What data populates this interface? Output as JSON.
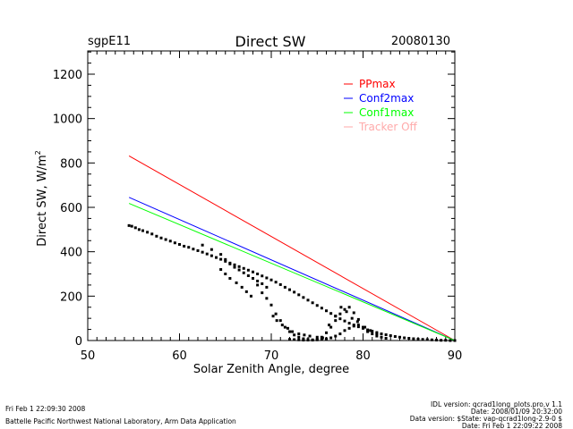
{
  "header": {
    "station": "sgpE11",
    "title": "Direct SW",
    "date": "20080130"
  },
  "footer": {
    "left_timestamp": "Fri Feb  1 22:09:30 2008",
    "left_org": "Battelle Pacific Northwest National Laboratory, Arm Data Application",
    "right_lines": [
      "IDL version: qcrad1long_plots.pro,v 1.1",
      "Date: 2008/01/09 20:32:00",
      "Data version: $State: vap-qcrad1long-2.9-0 $",
      "Date: Fri Feb  1 22:09:22 2008"
    ]
  },
  "chart_data": {
    "type": "scatter",
    "title": "Direct SW",
    "xlabel": "Solar Zenith Angle, degree",
    "ylabel": "Direct SW, W/m",
    "ylabel_superscript": "2",
    "xlim": [
      50,
      90
    ],
    "ylim": [
      0,
      1300
    ],
    "xticks": [
      50,
      60,
      70,
      80,
      90
    ],
    "xtick_labels": [
      "50",
      "60",
      "70",
      "80",
      "90"
    ],
    "yticks": [
      0,
      200,
      400,
      600,
      800,
      1000,
      1200
    ],
    "ytick_labels": [
      "0",
      "200",
      "400",
      "600",
      "800",
      "1000",
      "1200"
    ],
    "grid": false,
    "legend_position": "top-right",
    "legend": [
      {
        "name": "PPmax",
        "color": "#ff0000"
      },
      {
        "name": "Conf2max",
        "color": "#0000ff"
      },
      {
        "name": "Conf1max",
        "color": "#00ff00"
      },
      {
        "name": "Tracker Off",
        "color": "#ffaaaa"
      }
    ],
    "series": [
      {
        "name": "PPmax",
        "kind": "line",
        "color": "#ff0000",
        "x": [
          54.5,
          90
        ],
        "y": [
          832,
          0
        ]
      },
      {
        "name": "Conf2max",
        "kind": "line",
        "color": "#0000ff",
        "x": [
          54.5,
          90
        ],
        "y": [
          645,
          0
        ]
      },
      {
        "name": "Conf1max",
        "kind": "line",
        "color": "#00ff00",
        "x": [
          54.5,
          90
        ],
        "y": [
          618,
          0
        ]
      },
      {
        "name": "Direct SW",
        "kind": "scatter",
        "color": "#000000",
        "x": [
          54.5,
          54.8,
          55.2,
          55.6,
          56.0,
          56.5,
          57.0,
          57.5,
          58.0,
          58.5,
          59.0,
          59.5,
          60.0,
          60.5,
          61.0,
          61.5,
          62.0,
          62.5,
          63.0,
          63.5,
          64.0,
          64.5,
          65.0,
          65.5,
          66.0,
          66.5,
          67.0,
          67.5,
          68.0,
          68.5,
          69.0,
          69.5,
          70.0,
          70.5,
          71.0,
          71.5,
          72.0,
          72.5,
          73.0,
          73.5,
          74.0,
          74.5,
          75.0,
          75.5,
          76.0,
          76.5,
          77.0,
          77.5,
          78.0,
          78.5,
          79.0,
          79.5,
          80.0,
          80.5,
          81.0,
          81.5,
          82.0,
          82.5,
          83.0,
          83.5,
          84.0,
          84.5,
          85.0,
          85.5,
          86.0,
          86.5,
          87.0,
          87.5,
          88.0,
          88.5,
          89.0,
          89.5,
          90.0,
          62.5,
          63.5,
          64.5,
          65.0,
          65.5,
          66.0,
          66.5,
          67.0,
          67.5,
          68.0,
          68.5,
          69.0,
          69.5,
          64.5,
          65.0,
          65.5,
          66.2,
          66.8,
          67.3,
          67.8,
          68.5,
          69.0,
          69.5,
          70.0,
          70.5,
          71.0,
          71.5,
          72.0,
          72.5,
          73.0,
          73.5,
          74.0,
          74.5,
          75.0,
          75.5,
          76.0,
          76.5,
          77.0,
          77.5,
          78.0,
          78.5,
          79.0,
          79.5,
          80.0,
          80.5,
          81.0,
          81.5,
          82.0,
          82.5,
          70.2,
          70.6,
          71.2,
          71.8,
          72.3,
          73.0,
          73.6,
          74.2,
          75.0,
          75.6,
          76.3,
          77.0,
          77.6,
          78.2,
          78.8,
          79.4,
          80.2,
          80.8,
          81.5,
          72.0,
          72.5,
          73.0,
          73.5,
          74.0,
          74.5,
          75.0,
          75.5,
          76.0,
          76.5,
          77.0,
          77.5,
          78.0,
          78.5,
          79.0,
          79.5
        ],
        "y": [
          518,
          515,
          508,
          500,
          495,
          488,
          480,
          470,
          462,
          455,
          448,
          440,
          433,
          425,
          420,
          412,
          405,
          398,
          390,
          382,
          374,
          366,
          357,
          349,
          341,
          333,
          325,
          317,
          309,
          300,
          291,
          282,
          273,
          263,
          252,
          240,
          229,
          218,
          206,
          194,
          182,
          170,
          158,
          146,
          134,
          122,
          110,
          98,
          88,
          78,
          70,
          62,
          55,
          48,
          42,
          36,
          30,
          26,
          22,
          18,
          15,
          12,
          10,
          8,
          6,
          5,
          4,
          3,
          2,
          1,
          1,
          0,
          0,
          430,
          410,
          388,
          365,
          345,
          330,
          318,
          305,
          292,
          280,
          268,
          256,
          240,
          320,
          300,
          280,
          260,
          240,
          220,
          200,
          250,
          215,
          190,
          160,
          120,
          90,
          60,
          40,
          25,
          15,
          8,
          5,
          3,
          5,
          15,
          35,
          60,
          90,
          120,
          140,
          150,
          125,
          95,
          60,
          40,
          30,
          20,
          15,
          10,
          110,
          90,
          70,
          55,
          40,
          30,
          25,
          20,
          15,
          12,
          70,
          110,
          150,
          130,
          100,
          85,
          60,
          45,
          30,
          5,
          4,
          3,
          2,
          2,
          2,
          3,
          5,
          8,
          12,
          20,
          30,
          45,
          55,
          65,
          70
        ]
      }
    ]
  }
}
